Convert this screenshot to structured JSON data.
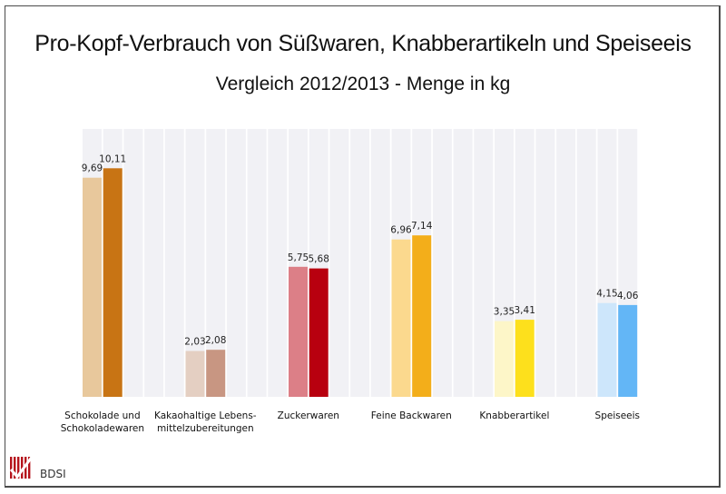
{
  "chart_data": {
    "type": "bar",
    "title": "Pro-Kopf-Verbrauch von Süßwaren, Knabberartikeln und Speiseeis",
    "subtitle": "Vergleich 2012/2013 - Menge in kg",
    "xlabel": "",
    "ylabel": "",
    "ylim": [
      0,
      11.8
    ],
    "grid": false,
    "legend": "none",
    "categories": [
      "Schokolade und Schokoladewaren",
      "Kakaohaltige Lebens-mittelzubereitungen",
      "Zuckerwaren",
      "Feine Backwaren",
      "Knabberartikel",
      "Speiseeis"
    ],
    "category_lines": [
      [
        "Schokolade und",
        "Schokoladewaren"
      ],
      [
        "Kakaohaltige Lebens-",
        "mittelzubereitungen"
      ],
      [
        "Zuckerwaren"
      ],
      [
        "Feine Backwaren"
      ],
      [
        "Knabberartikel"
      ],
      [
        "Speiseeis"
      ]
    ],
    "series": [
      {
        "name": "2012",
        "values": [
          9.69,
          2.03,
          5.75,
          6.96,
          3.35,
          4.15
        ],
        "labels": [
          "9,69",
          "2,03",
          "5,75",
          "6,96",
          "3,35",
          "4,15"
        ]
      },
      {
        "name": "2013",
        "values": [
          10.11,
          2.08,
          5.68,
          7.14,
          3.41,
          4.06
        ],
        "labels": [
          "10,11",
          "2,08",
          "5,68",
          "7,14",
          "3,41",
          "4,06"
        ]
      }
    ],
    "colors": [
      [
        "#e8c89c",
        "#c87414"
      ],
      [
        "#e4cfc2",
        "#c89682"
      ],
      [
        "#dc7f87",
        "#b8000f"
      ],
      [
        "#fbd98e",
        "#f3ae1a"
      ],
      [
        "#fdf6c8",
        "#fde01c"
      ],
      [
        "#cde6fb",
        "#63b6f6"
      ]
    ],
    "background_stripe_color": "#f1f1f5"
  },
  "branding": {
    "logo_text": "BDSI",
    "logo_color": "#b5121b"
  }
}
